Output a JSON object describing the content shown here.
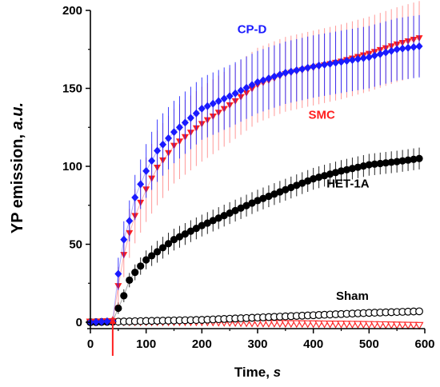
{
  "chart_data": {
    "type": "scatter",
    "xlabel": {
      "main": "Time, ",
      "unit": "s"
    },
    "ylabel": {
      "main": "YP emission, ",
      "unit": "a.u."
    },
    "xlim": [
      0,
      600
    ],
    "ylim": [
      0,
      200
    ],
    "x_ticks": [
      "0",
      "100",
      "200",
      "300",
      "400",
      "500",
      "600"
    ],
    "y_ticks": [
      "0",
      "50",
      "100",
      "150",
      "200"
    ],
    "x_tick_values": [
      0,
      100,
      200,
      300,
      400,
      500,
      600
    ],
    "y_tick_values": [
      0,
      50,
      100,
      150,
      200
    ],
    "arrow_at_x": 40,
    "series": [
      {
        "name": "CP-D",
        "color": "#1a1aff",
        "marker": "diamond",
        "label_x": 290,
        "label_y": 188,
        "x0": 0,
        "dx": 10,
        "n": 60,
        "onset": 40,
        "points": [
          [
            0,
            0
          ],
          [
            30,
            0.5
          ],
          [
            40,
            0.6
          ],
          [
            50,
            31
          ],
          [
            60,
            53
          ],
          [
            70,
            65
          ],
          [
            80,
            80
          ],
          [
            100,
            97
          ],
          [
            120,
            110
          ],
          [
            150,
            122
          ],
          [
            200,
            137
          ],
          [
            250,
            145
          ],
          [
            300,
            154
          ],
          [
            350,
            160
          ],
          [
            400,
            164
          ],
          [
            450,
            167
          ],
          [
            500,
            170
          ],
          [
            550,
            175
          ],
          [
            590,
            177
          ]
        ]
      },
      {
        "name": "SMC",
        "color": "#ff1f1f",
        "marker": "triangle",
        "label_x": 415,
        "label_y": 133,
        "x0": 0,
        "dx": 10,
        "n": 60,
        "onset": 40,
        "points": [
          [
            0,
            0
          ],
          [
            30,
            0.5
          ],
          [
            40,
            0.6
          ],
          [
            50,
            23
          ],
          [
            60,
            43
          ],
          [
            70,
            57
          ],
          [
            80,
            68
          ],
          [
            100,
            85
          ],
          [
            120,
            99
          ],
          [
            150,
            113
          ],
          [
            200,
            127
          ],
          [
            250,
            139
          ],
          [
            300,
            152
          ],
          [
            350,
            159
          ],
          [
            400,
            163
          ],
          [
            450,
            167
          ],
          [
            500,
            172
          ],
          [
            550,
            178
          ],
          [
            590,
            182
          ]
        ]
      },
      {
        "name": "HET-1A",
        "color": "#000000",
        "marker": "circle-filled",
        "label_x": 462,
        "label_y": 89,
        "x0": 0,
        "dx": 10,
        "n": 60,
        "onset": 40,
        "points": [
          [
            0,
            0
          ],
          [
            30,
            0.4
          ],
          [
            40,
            0.5
          ],
          [
            50,
            9
          ],
          [
            60,
            17
          ],
          [
            70,
            27
          ],
          [
            80,
            32
          ],
          [
            100,
            40
          ],
          [
            150,
            53
          ],
          [
            200,
            62
          ],
          [
            250,
            70
          ],
          [
            300,
            78
          ],
          [
            350,
            85
          ],
          [
            400,
            92
          ],
          [
            450,
            97
          ],
          [
            500,
            101
          ],
          [
            550,
            103
          ],
          [
            590,
            105
          ]
        ]
      },
      {
        "name": "Sham",
        "color": "#000000",
        "marker": "circle-open",
        "label_x": 470,
        "label_y": 17,
        "x0": 0,
        "dx": 10,
        "n": 60,
        "onset": 0,
        "points": [
          [
            0,
            0
          ],
          [
            50,
            0.4
          ],
          [
            100,
            0.8
          ],
          [
            200,
            1.5
          ],
          [
            300,
            3
          ],
          [
            400,
            4.5
          ],
          [
            500,
            6
          ],
          [
            590,
            7
          ]
        ]
      },
      {
        "name": "",
        "color": "#ff1f1f",
        "marker": "triangle-open",
        "x0": 0,
        "dx": 10,
        "n": 60,
        "onset": 0,
        "points": [
          [
            0,
            0
          ],
          [
            50,
            0
          ],
          [
            100,
            0
          ],
          [
            200,
            0
          ],
          [
            300,
            -0.8
          ],
          [
            400,
            -1.2
          ],
          [
            500,
            -1.6
          ],
          [
            590,
            -2.2
          ]
        ]
      }
    ],
    "error_bars": {
      "CP-D": 20,
      "SMC": 24,
      "HET-1A": 7
    }
  }
}
